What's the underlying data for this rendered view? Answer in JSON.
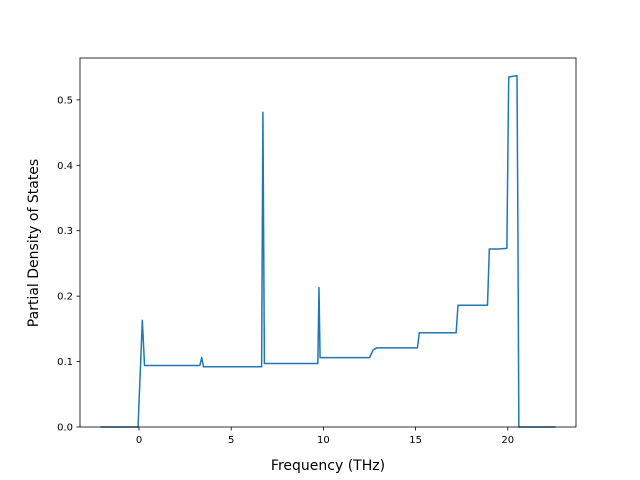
{
  "chart_data": {
    "type": "line",
    "title": "",
    "xlabel": "Frequency (THz)",
    "ylabel": "Partial Density of States",
    "xlim": [
      -3.2,
      23.7
    ],
    "ylim": [
      0.0,
      0.564
    ],
    "xticks": [
      0,
      5,
      10,
      15,
      20
    ],
    "yticks": [
      0.0,
      0.1,
      0.2,
      0.3,
      0.4,
      0.5
    ],
    "xtick_labels": [
      "0",
      "5",
      "10",
      "15",
      "20"
    ],
    "ytick_labels": [
      "0.0",
      "0.1",
      "0.2",
      "0.3",
      "0.4",
      "0.5"
    ],
    "grid": false,
    "legend": "none",
    "color": "#1f77b4",
    "series": [
      {
        "x": [
          -2.1,
          -0.05,
          0.0,
          0.12,
          0.18,
          0.3,
          1.5,
          3.3,
          3.4,
          3.5,
          5.0,
          6.65,
          6.72,
          6.8,
          6.9,
          8.0,
          9.7,
          9.76,
          9.82,
          9.9,
          11.0,
          12.5,
          12.7,
          12.9,
          14.0,
          15.1,
          15.2,
          16.0,
          17.2,
          17.3,
          18.0,
          18.9,
          19.0,
          19.5,
          19.95,
          20.05,
          20.5,
          20.55,
          20.6,
          21.0,
          22.6
        ],
        "y": [
          0.0,
          0.0,
          0.037,
          0.12,
          0.163,
          0.094,
          0.094,
          0.094,
          0.106,
          0.092,
          0.092,
          0.092,
          0.481,
          0.097,
          0.097,
          0.097,
          0.097,
          0.213,
          0.106,
          0.106,
          0.106,
          0.106,
          0.118,
          0.121,
          0.121,
          0.121,
          0.144,
          0.144,
          0.144,
          0.186,
          0.186,
          0.186,
          0.272,
          0.272,
          0.273,
          0.535,
          0.537,
          0.3,
          0.0,
          0.0,
          0.0
        ]
      }
    ]
  }
}
